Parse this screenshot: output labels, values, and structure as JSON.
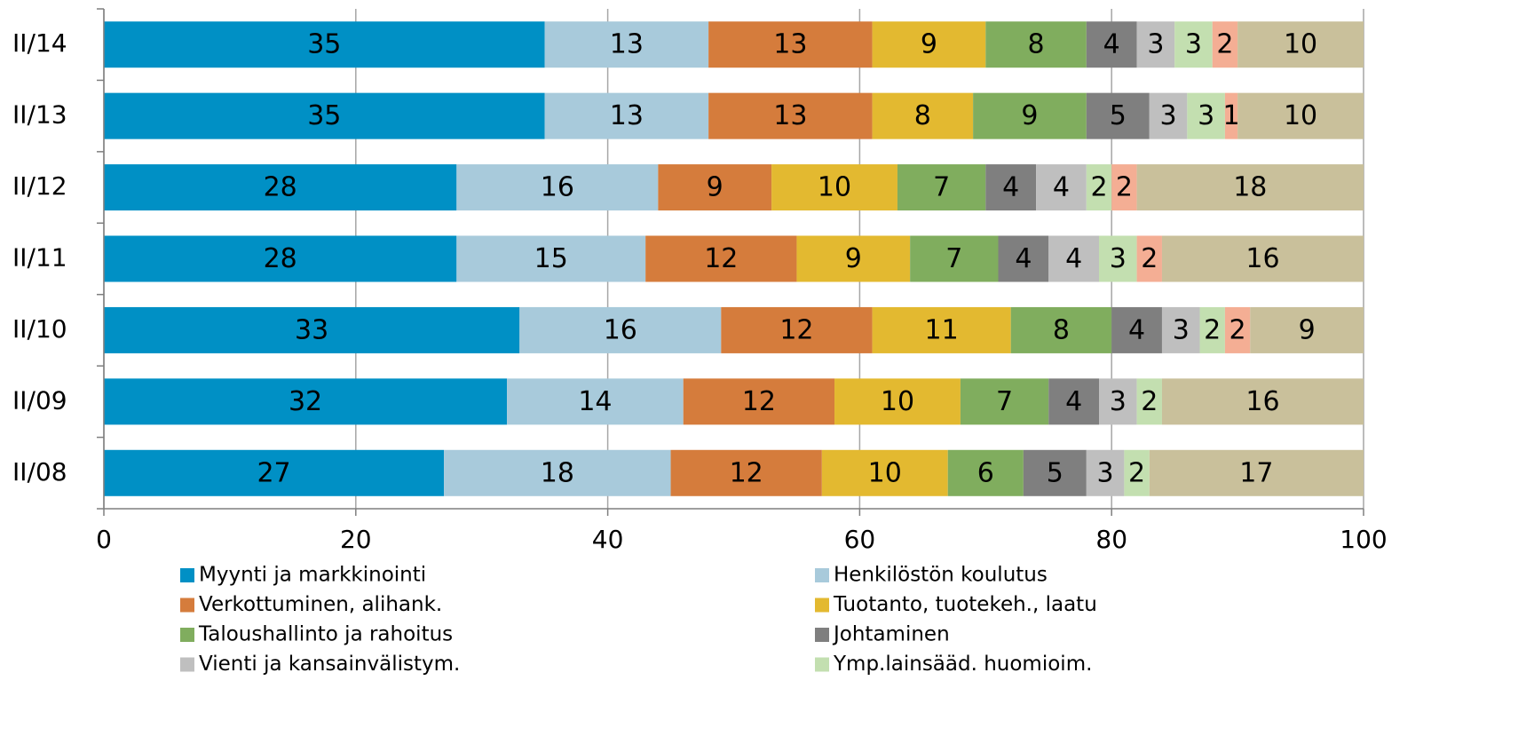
{
  "chart_data": {
    "type": "stacked_barh",
    "categories": [
      "II/14",
      "II/13",
      "II/12",
      "II/11",
      "II/10",
      "II/09",
      "II/08"
    ],
    "series": [
      {
        "name": "Myynti ja markkinointi",
        "color": "#0090c5",
        "values": [
          35,
          35,
          28,
          28,
          33,
          32,
          27
        ]
      },
      {
        "name": "Henkilöstön koulutus",
        "color": "#a8cadb",
        "values": [
          13,
          13,
          16,
          15,
          16,
          14,
          18
        ]
      },
      {
        "name": "Verkottuminen, alihank.",
        "color": "#d57c3c",
        "values": [
          13,
          13,
          9,
          12,
          12,
          12,
          12
        ]
      },
      {
        "name": "Tuotanto, tuotekeh., laatu",
        "color": "#e3b930",
        "values": [
          9,
          8,
          10,
          9,
          11,
          10,
          10
        ]
      },
      {
        "name": "Taloushallinto ja rahoitus",
        "color": "#80ad5e",
        "values": [
          8,
          9,
          7,
          7,
          8,
          7,
          6
        ]
      },
      {
        "name": "Johtaminen",
        "color": "#7f7f7f",
        "values": [
          4,
          5,
          4,
          4,
          4,
          4,
          5
        ]
      },
      {
        "name": "Vienti ja kansainvälistym.",
        "color": "#bfbfbf",
        "values": [
          3,
          3,
          4,
          4,
          3,
          3,
          3
        ]
      },
      {
        "name": "Ymp.lainsääd. huomioim.",
        "color": "#c3dfb0",
        "values": [
          3,
          3,
          2,
          3,
          2,
          2,
          2
        ]
      },
      {
        "color": "#f4ae94",
        "values": [
          2,
          1,
          2,
          2,
          2,
          0,
          0
        ]
      },
      {
        "color": "#c9c09b",
        "values": [
          10,
          10,
          18,
          16,
          9,
          16,
          17
        ]
      }
    ],
    "xlim": [
      0,
      100
    ],
    "xticks": [
      0,
      20,
      40,
      60,
      80,
      100
    ],
    "grid": true
  }
}
